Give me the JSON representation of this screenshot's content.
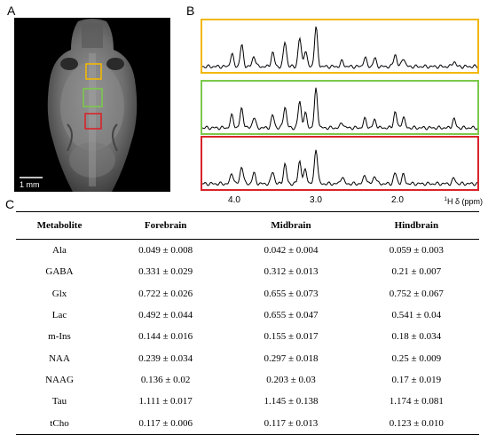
{
  "panels": {
    "a": "A",
    "b": "B",
    "c": "C"
  },
  "mri": {
    "scale_bar_label": "1 mm",
    "roi_colors": {
      "forebrain": "#f2b705",
      "midbrain": "#7cc94b",
      "hindbrain": "#d9232a"
    }
  },
  "spectra": {
    "x_ticks": [
      "4.0",
      "3.0",
      "2.0"
    ],
    "x_axis_label_prefix": "1",
    "x_axis_label_main": "H δ (ppm)",
    "colors": {
      "forebrain": "#f2b705",
      "midbrain": "#7cc94b",
      "hindbrain": "#d9232a"
    }
  },
  "table": {
    "headers": [
      "Metabolite",
      "Forebrain",
      "Midbrain",
      "Hindbrain"
    ],
    "rows": [
      [
        "Ala",
        "0.049 ± 0.008",
        "0.042 ± 0.004",
        "0.059 ± 0.003"
      ],
      [
        "GABA",
        "0.331 ± 0.029",
        "0.312 ± 0.013",
        "0.21 ± 0.007"
      ],
      [
        "Glx",
        "0.722 ± 0.026",
        "0.655 ± 0.073",
        "0.752 ± 0.067"
      ],
      [
        "Lac",
        "0.492 ± 0.044",
        "0.655 ± 0.047",
        "0.541 ± 0.04"
      ],
      [
        "m-Ins",
        "0.144 ± 0.016",
        "0.155 ± 0.017",
        "0.18 ± 0.034"
      ],
      [
        "NAA",
        "0.239 ± 0.034",
        "0.297 ± 0.018",
        "0.25 ± 0.009"
      ],
      [
        "NAAG",
        "0.136 ± 0.02",
        "0.203 ± 0.03",
        "0.17 ± 0.019"
      ],
      [
        "Tau",
        "1.111 ± 0.017",
        "1.145 ± 0.138",
        "1.174 ± 0.081"
      ],
      [
        "tCho",
        "0.117 ± 0.006",
        "0.117 ± 0.013",
        "0.123 ± 0.010"
      ]
    ]
  }
}
